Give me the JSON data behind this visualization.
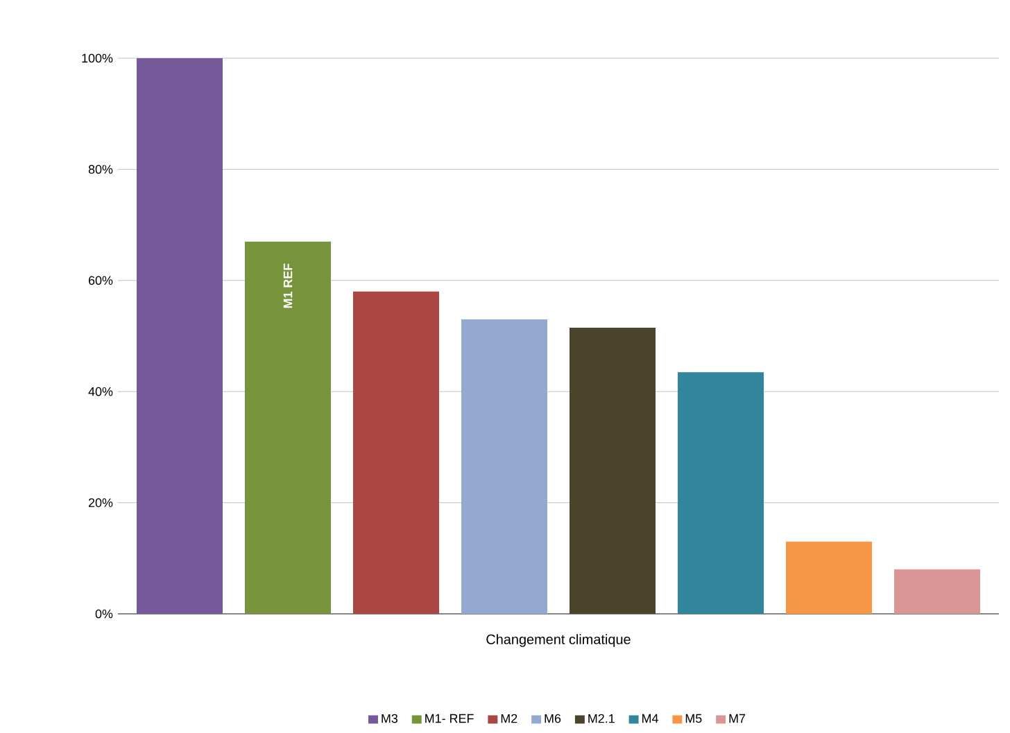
{
  "chart_data": {
    "type": "bar",
    "categories": [
      null
    ],
    "xlabel": "Changement climatique",
    "series": [
      {
        "name": "M3",
        "color": "#76599a",
        "values": [
          100
        ]
      },
      {
        "name": "M1- REF",
        "color": "#77933c",
        "values": [
          67
        ]
      },
      {
        "name": "M2",
        "color": "#aa4643",
        "values": [
          58
        ]
      },
      {
        "name": "M6",
        "color": "#93a9cf",
        "values": [
          53
        ]
      },
      {
        "name": "M2.1",
        "color": "#4a452a",
        "values": [
          51.5
        ]
      },
      {
        "name": "M4",
        "color": "#31859c",
        "values": [
          43.5
        ]
      },
      {
        "name": "M5",
        "color": "#f79646",
        "values": [
          13
        ]
      },
      {
        "name": "M7",
        "color": "#d99694",
        "values": [
          8
        ]
      }
    ],
    "annotations": [
      "M1 REF"
    ],
    "ylim": [
      0,
      100
    ],
    "yticks": [
      {
        "value": 0,
        "label": "0%"
      },
      {
        "value": 20,
        "label": "20%"
      },
      {
        "value": 40,
        "label": "40%"
      },
      {
        "value": 60,
        "label": "60%"
      },
      {
        "value": 80,
        "label": "80%"
      },
      {
        "value": 100,
        "label": "100%"
      }
    ],
    "grid": "y",
    "legend": "bottom"
  }
}
